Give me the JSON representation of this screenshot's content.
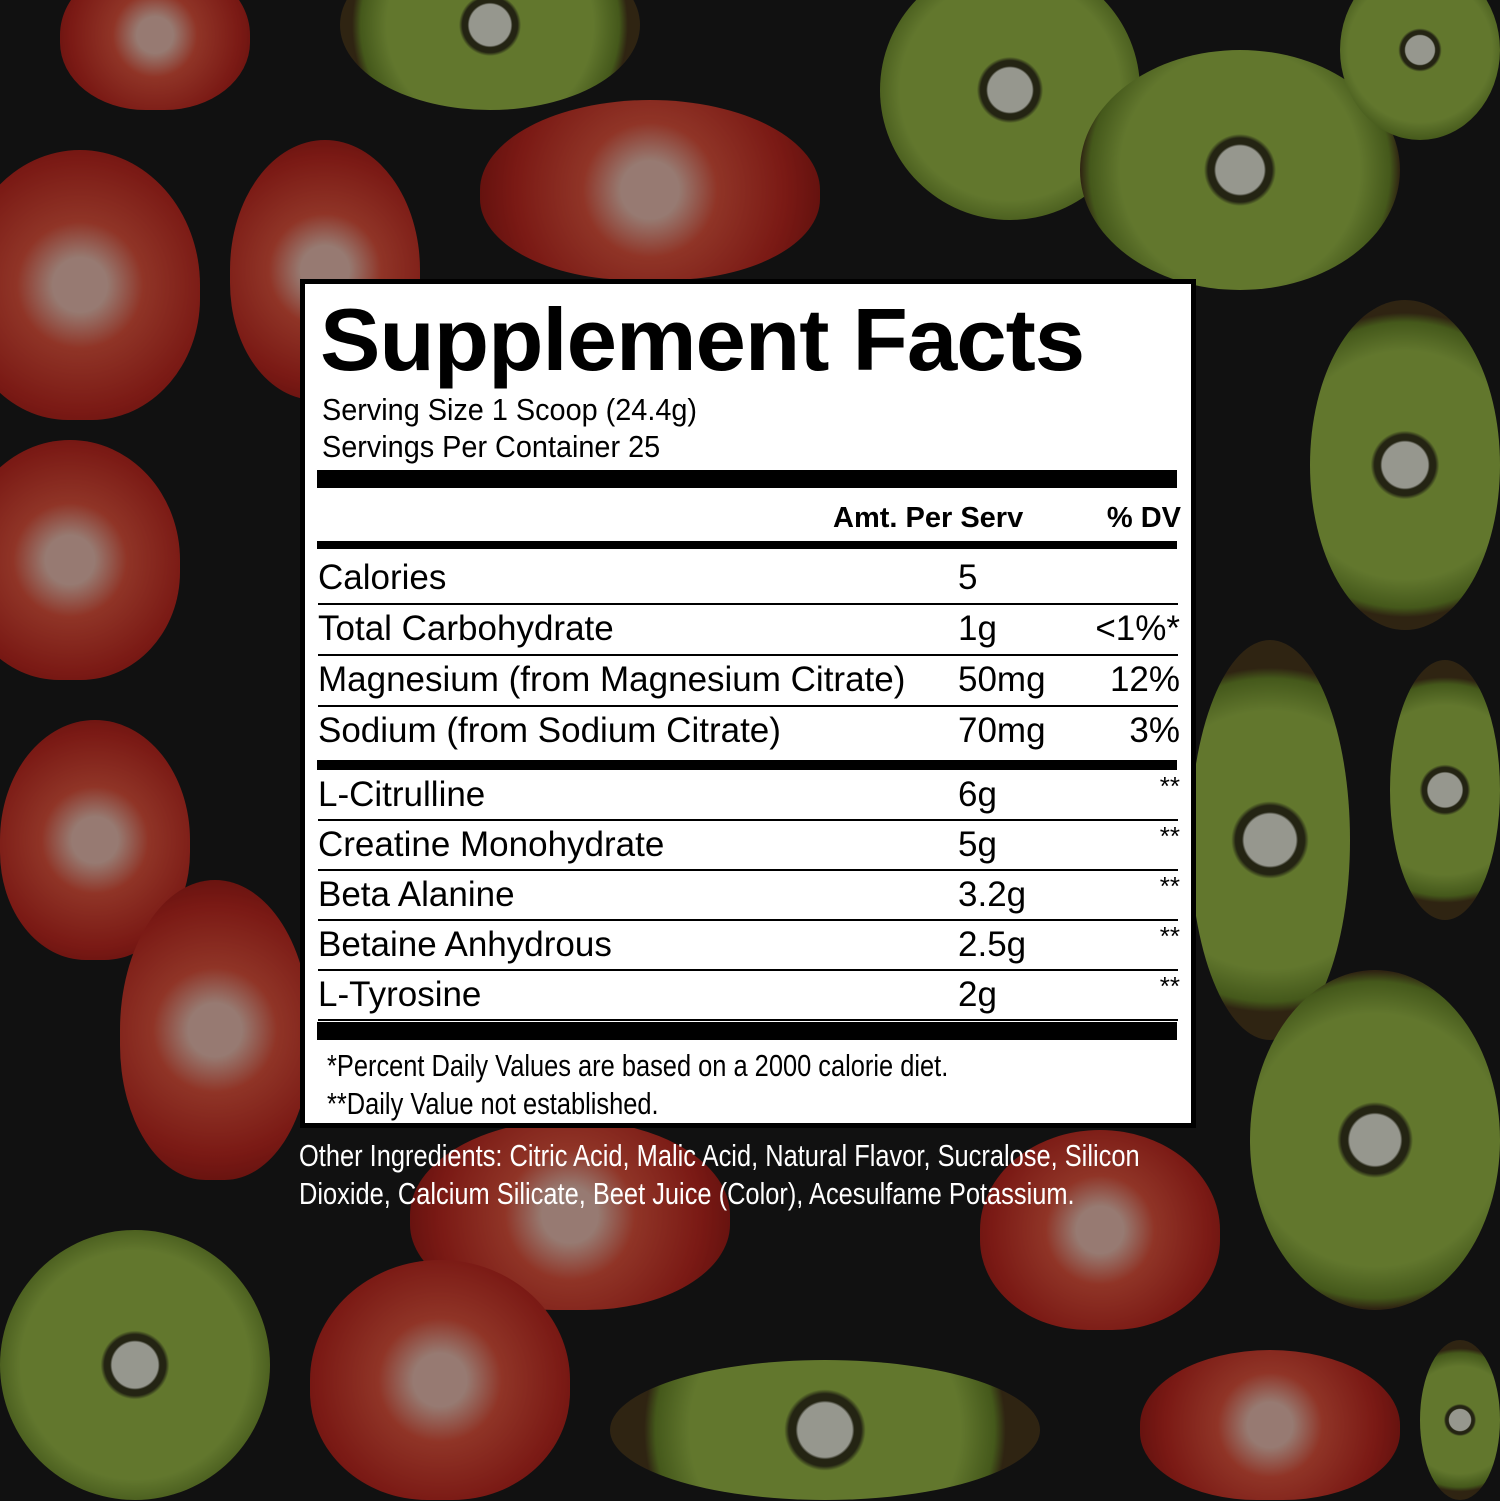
{
  "title": "Supplement Facts",
  "serving_size": "Serving Size 1 Scoop (24.4g)",
  "servings_per_container": "Servings Per Container 25",
  "columns": {
    "amount": "Amt. Per Serv",
    "dv": "% DV"
  },
  "group1": [
    {
      "name": "Calories",
      "amount": "5",
      "dv": ""
    },
    {
      "name": "Total Carbohydrate",
      "amount": "1g",
      "dv": "<1%*"
    },
    {
      "name": "Magnesium (from Magnesium Citrate)",
      "amount": "50mg",
      "dv": "12%"
    },
    {
      "name": "Sodium (from Sodium Citrate)",
      "amount": "70mg",
      "dv": "3%"
    }
  ],
  "group2": [
    {
      "name": "L-Citrulline",
      "amount": "6g",
      "dv": "**"
    },
    {
      "name": "Creatine Monohydrate",
      "amount": "5g",
      "dv": "**"
    },
    {
      "name": "Beta Alanine",
      "amount": "3.2g",
      "dv": "**"
    },
    {
      "name": "Betaine Anhydrous",
      "amount": "2.5g",
      "dv": "**"
    },
    {
      "name": "L-Tyrosine",
      "amount": "2g",
      "dv": "**"
    }
  ],
  "footnotes": [
    "*Percent Daily Values are based on a 2000 calorie diet.",
    "**Daily Value not established."
  ],
  "other_ingredients": "Other Ingredients: Citric Acid, Malic Acid, Natural Flavor, Sucralose, Silicon Dioxide, Calcium Silicate, Beet Juice (Color), Acesulfame Potassium.",
  "colors": {
    "panel": "#ffffff",
    "ink": "#000000",
    "background": "#1c1c1c",
    "kiwi": "#8fb040",
    "strawberry": "#c62a22"
  }
}
